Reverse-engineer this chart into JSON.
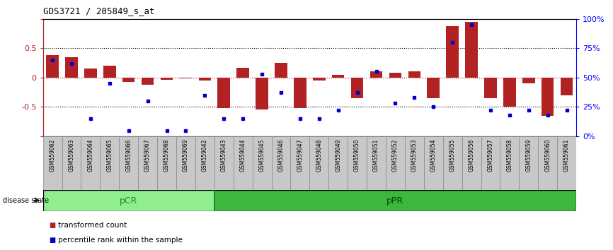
{
  "title": "GDS3721 / 205849_s_at",
  "samples": [
    "GSM559062",
    "GSM559063",
    "GSM559064",
    "GSM559065",
    "GSM559066",
    "GSM559067",
    "GSM559068",
    "GSM559069",
    "GSM559042",
    "GSM559043",
    "GSM559044",
    "GSM559045",
    "GSM559046",
    "GSM559047",
    "GSM559048",
    "GSM559049",
    "GSM559050",
    "GSM559051",
    "GSM559052",
    "GSM559053",
    "GSM559054",
    "GSM559055",
    "GSM559056",
    "GSM559057",
    "GSM559058",
    "GSM559059",
    "GSM559060",
    "GSM559061"
  ],
  "transformed_count": [
    0.38,
    0.35,
    0.15,
    0.2,
    -0.08,
    -0.12,
    -0.04,
    -0.02,
    -0.05,
    -0.52,
    0.16,
    -0.55,
    0.25,
    -0.52,
    -0.05,
    0.05,
    -0.35,
    0.1,
    0.08,
    0.1,
    -0.35,
    0.88,
    0.95,
    -0.35,
    -0.5,
    -0.1,
    -0.65,
    -0.3
  ],
  "percentile_rank": [
    65,
    62,
    15,
    45,
    5,
    30,
    5,
    5,
    35,
    15,
    15,
    53,
    37,
    15,
    15,
    22,
    37,
    55,
    28,
    33,
    25,
    80,
    95,
    22,
    18,
    22,
    18,
    22
  ],
  "group_pCR_count": 9,
  "group_pPR_count": 19,
  "bar_color": "#B22222",
  "dot_color": "#0000CD",
  "pCR_color": "#90EE90",
  "pPR_color": "#3CB83C",
  "legend_red_label": "transformed count",
  "legend_blue_label": "percentile rank within the sample"
}
